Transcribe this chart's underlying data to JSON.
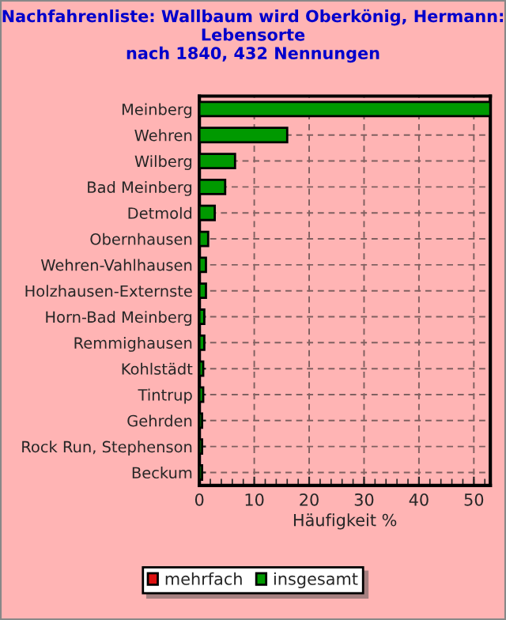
{
  "chart_data": {
    "type": "bar",
    "orientation": "horizontal",
    "title": "Nachfahrenliste: Wallbaum wird Oberkönig, Hermann: Lebensorte\nnach 1840, 432 Nennungen",
    "xlabel": "Häufigkeit %",
    "categories": [
      "Meinberg",
      "Wehren",
      "Wilberg",
      "Bad Meinberg",
      "Detmold",
      "Obernhausen",
      "Wehren-Vahlhausen",
      "Holzhausen-Externste",
      "Horn-Bad Meinberg",
      "Remmighausen",
      "Kohlstädt",
      "Tintrup",
      "Gehrden",
      "Rock Run, Stephenson",
      "Beckum"
    ],
    "series": [
      {
        "name": "mehrfach",
        "color": "#dd1111",
        "values": [
          0,
          0,
          0,
          0,
          0,
          0,
          0,
          0,
          0,
          0,
          0,
          0,
          0,
          0,
          0
        ]
      },
      {
        "name": "insgesamt",
        "color": "#009900",
        "values": [
          53,
          16,
          6.5,
          4.7,
          2.8,
          1.6,
          1.2,
          1.2,
          0.9,
          0.9,
          0.7,
          0.7,
          0.5,
          0.5,
          0.5
        ]
      }
    ],
    "xlim": [
      0,
      53
    ],
    "xticks": [
      0,
      10,
      20,
      30,
      40,
      50
    ],
    "grid": true,
    "legend": "bottom"
  }
}
